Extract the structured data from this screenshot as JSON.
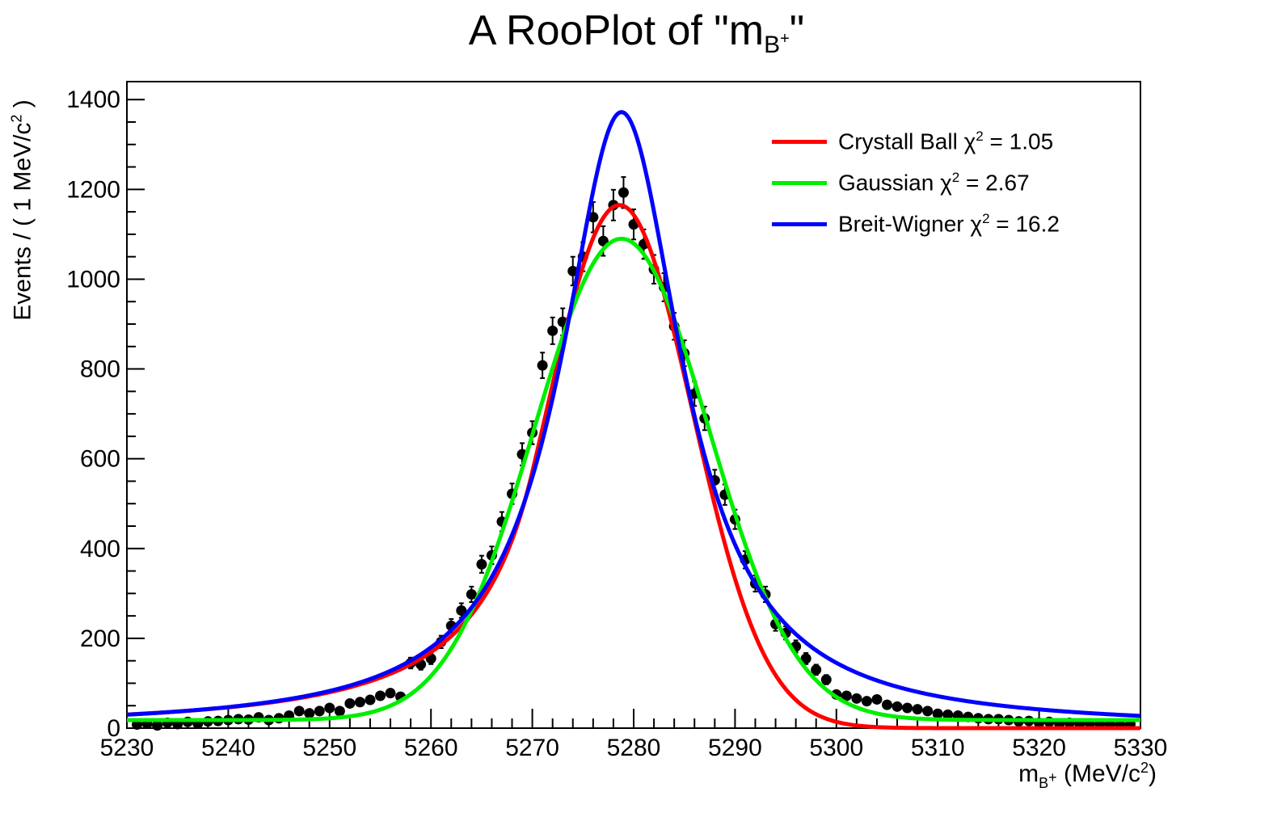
{
  "chart_data": {
    "type": "line",
    "title_main": "A RooPlot of \"m",
    "title_sub": "B",
    "title_sup": "+",
    "title_close": "\"",
    "xlabel": {
      "pre": "m",
      "sub": "B",
      "sup": "+",
      "mid": " (MeV/c",
      "unit_sup": "2",
      "post": ")"
    },
    "ylabel": {
      "pre": "Events / ( 1 MeV/c",
      "sup": "2",
      "post": " )"
    },
    "xlim": [
      5230,
      5330
    ],
    "ylim": [
      0,
      1400
    ],
    "ytop": 1440,
    "xticks": [
      5230,
      5240,
      5250,
      5260,
      5270,
      5280,
      5290,
      5300,
      5310,
      5320,
      5330
    ],
    "yticks": [
      0,
      200,
      400,
      600,
      800,
      1000,
      1200,
      1400
    ],
    "series": [
      {
        "name": "Crystall Ball",
        "chi2": "1.05",
        "color": "#ff0000",
        "model": "crystalball",
        "params": {
          "mean": 5278.6,
          "sigma": 7.2,
          "alpha": 1.2,
          "n": 2.0,
          "peak": 1165
        }
      },
      {
        "name": "Gaussian",
        "chi2": "2.67",
        "color": "#00ee00",
        "model": "gaussian",
        "params": {
          "mean": 5278.8,
          "sigma": 8.6,
          "peak": 1090,
          "base": 18
        }
      },
      {
        "name": "Breit-Wigner",
        "chi2": "16.2",
        "color": "#0000ff",
        "model": "breitwigner",
        "params": {
          "mean": 5278.8,
          "gamma": 14.6,
          "peak": 1372
        }
      }
    ],
    "legend_labels": [
      "Crystall Ball χ",
      "Gaussian χ",
      "Breit-Wigner χ"
    ],
    "legend_values": [
      " = 1.05",
      " = 2.67",
      " = 16.2"
    ],
    "legend_sup": "2",
    "points": [
      [
        5231,
        8
      ],
      [
        5232,
        10
      ],
      [
        5233,
        6
      ],
      [
        5234,
        12
      ],
      [
        5235,
        9
      ],
      [
        5236,
        14
      ],
      [
        5237,
        10
      ],
      [
        5238,
        15
      ],
      [
        5239,
        16
      ],
      [
        5240,
        18
      ],
      [
        5241,
        20
      ],
      [
        5242,
        19
      ],
      [
        5243,
        24
      ],
      [
        5244,
        18
      ],
      [
        5245,
        22
      ],
      [
        5246,
        28
      ],
      [
        5247,
        38
      ],
      [
        5248,
        33
      ],
      [
        5249,
        38
      ],
      [
        5250,
        45
      ],
      [
        5251,
        38
      ],
      [
        5252,
        55
      ],
      [
        5253,
        58
      ],
      [
        5254,
        63
      ],
      [
        5255,
        72
      ],
      [
        5256,
        78
      ],
      [
        5257,
        70
      ],
      [
        5258,
        145
      ],
      [
        5259,
        142
      ],
      [
        5260,
        155
      ],
      [
        5261,
        192
      ],
      [
        5262,
        228
      ],
      [
        5263,
        262
      ],
      [
        5264,
        298
      ],
      [
        5265,
        365
      ],
      [
        5266,
        385
      ],
      [
        5267,
        460
      ],
      [
        5268,
        522
      ],
      [
        5269,
        610
      ],
      [
        5270,
        658
      ],
      [
        5271,
        808
      ],
      [
        5272,
        885
      ],
      [
        5273,
        905
      ],
      [
        5274,
        1018
      ],
      [
        5275,
        1050
      ],
      [
        5276,
        1138
      ],
      [
        5277,
        1085
      ],
      [
        5278,
        1165
      ],
      [
        5279,
        1193
      ],
      [
        5280,
        1122
      ],
      [
        5281,
        1078
      ],
      [
        5282,
        1022
      ],
      [
        5283,
        982
      ],
      [
        5284,
        895
      ],
      [
        5285,
        835
      ],
      [
        5286,
        745
      ],
      [
        5287,
        690
      ],
      [
        5288,
        552
      ],
      [
        5289,
        520
      ],
      [
        5290,
        465
      ],
      [
        5291,
        375
      ],
      [
        5292,
        322
      ],
      [
        5293,
        298
      ],
      [
        5294,
        232
      ],
      [
        5295,
        212
      ],
      [
        5296,
        182
      ],
      [
        5297,
        155
      ],
      [
        5298,
        130
      ],
      [
        5299,
        108
      ],
      [
        5300,
        75
      ],
      [
        5301,
        72
      ],
      [
        5302,
        66
      ],
      [
        5303,
        60
      ],
      [
        5304,
        64
      ],
      [
        5305,
        52
      ],
      [
        5306,
        48
      ],
      [
        5307,
        45
      ],
      [
        5308,
        42
      ],
      [
        5309,
        38
      ],
      [
        5310,
        32
      ],
      [
        5311,
        30
      ],
      [
        5312,
        28
      ],
      [
        5313,
        25
      ],
      [
        5314,
        22
      ],
      [
        5315,
        20
      ],
      [
        5316,
        20
      ],
      [
        5317,
        18
      ],
      [
        5318,
        15
      ],
      [
        5319,
        16
      ],
      [
        5320,
        12
      ],
      [
        5321,
        14
      ],
      [
        5322,
        10
      ],
      [
        5323,
        12
      ],
      [
        5324,
        9
      ],
      [
        5325,
        11
      ],
      [
        5326,
        8
      ],
      [
        5327,
        10
      ],
      [
        5328,
        7
      ],
      [
        5329,
        9
      ]
    ]
  }
}
